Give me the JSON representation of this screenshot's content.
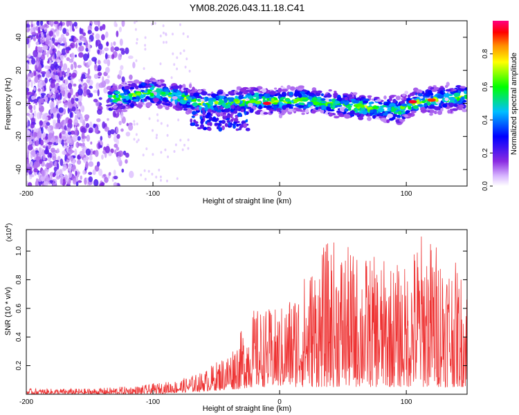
{
  "title": "YM08.2026.043.11.18.C41",
  "chart_data": [
    {
      "type": "heatmap",
      "title": "YM08.2026.043.11.18.C41",
      "xlabel": "Height of straight line (km)",
      "ylabel": "Frequency (Hz)",
      "xlim": [
        -200,
        148
      ],
      "ylim": [
        -50,
        50
      ],
      "x_ticks": [
        "-200",
        "-100",
        "0",
        "100"
      ],
      "y_ticks": [
        "40",
        "20",
        "0",
        "-20",
        "-40"
      ],
      "colorbar": {
        "label": "Normalized spectral amplitude",
        "range": [
          0,
          1
        ],
        "ticks": [
          "0.0",
          "0.2",
          "0.4",
          "0.6",
          "0.8"
        ],
        "colors": [
          "#ffffff",
          "#8a2be2",
          "#0000ff",
          "#00bfff",
          "#00ff00",
          "#ffff00",
          "#ff8c00",
          "#ff0000",
          "#ff0080"
        ]
      },
      "ridge_frequency_profile": [
        {
          "x": -130,
          "y": 3
        },
        {
          "x": -100,
          "y": 7
        },
        {
          "x": -80,
          "y": 4
        },
        {
          "x": -60,
          "y": 0
        },
        {
          "x": -40,
          "y": 1
        },
        {
          "x": -20,
          "y": 2
        },
        {
          "x": 0,
          "y": 1
        },
        {
          "x": 20,
          "y": 2
        },
        {
          "x": 40,
          "y": 0
        },
        {
          "x": 60,
          "y": -2
        },
        {
          "x": 80,
          "y": -3
        },
        {
          "x": 95,
          "y": -4
        },
        {
          "x": 110,
          "y": 1
        },
        {
          "x": 130,
          "y": 3
        },
        {
          "x": 148,
          "y": 4
        }
      ],
      "peak_amplitude_locations": [
        {
          "x": -10,
          "y": 0,
          "amplitude": 0.95
        },
        {
          "x": 105,
          "y": 1,
          "amplitude": 0.95
        },
        {
          "x": 120,
          "y": 2,
          "amplitude": 0.9
        }
      ]
    },
    {
      "type": "line",
      "xlabel": "Height of straight line (km)",
      "ylabel": "SNR (10 * v/v)",
      "y_multiplier": "(x10",
      "y_multiplier_exp": "4",
      "y_multiplier_close": ")",
      "xlim": [
        -200,
        148
      ],
      "ylim": [
        0,
        1.15
      ],
      "x_ticks": [
        "-200",
        "-100",
        "0",
        "100"
      ],
      "y_ticks": [
        "1.0",
        "0.8",
        "0.6",
        "0.4",
        "0.2"
      ],
      "series": [
        {
          "name": "SNR",
          "color": "#ee3333",
          "envelope": [
            {
              "x": -200,
              "low": 0.0,
              "high": 0.04
            },
            {
              "x": -150,
              "low": 0.0,
              "high": 0.04
            },
            {
              "x": -110,
              "low": 0.0,
              "high": 0.06
            },
            {
              "x": -80,
              "low": 0.01,
              "high": 0.1
            },
            {
              "x": -60,
              "low": 0.02,
              "high": 0.16
            },
            {
              "x": -40,
              "low": 0.03,
              "high": 0.3
            },
            {
              "x": -20,
              "low": 0.05,
              "high": 0.6
            },
            {
              "x": 0,
              "low": 0.05,
              "high": 0.6
            },
            {
              "x": 20,
              "low": 0.05,
              "high": 0.85
            },
            {
              "x": 40,
              "low": 0.05,
              "high": 1.1
            },
            {
              "x": 60,
              "low": 0.05,
              "high": 1.0
            },
            {
              "x": 80,
              "low": 0.05,
              "high": 0.95
            },
            {
              "x": 100,
              "low": 0.05,
              "high": 0.9
            },
            {
              "x": 110,
              "low": 0.05,
              "high": 1.15
            },
            {
              "x": 130,
              "low": 0.05,
              "high": 1.05
            },
            {
              "x": 148,
              "low": 0.05,
              "high": 0.8
            }
          ]
        }
      ]
    }
  ]
}
